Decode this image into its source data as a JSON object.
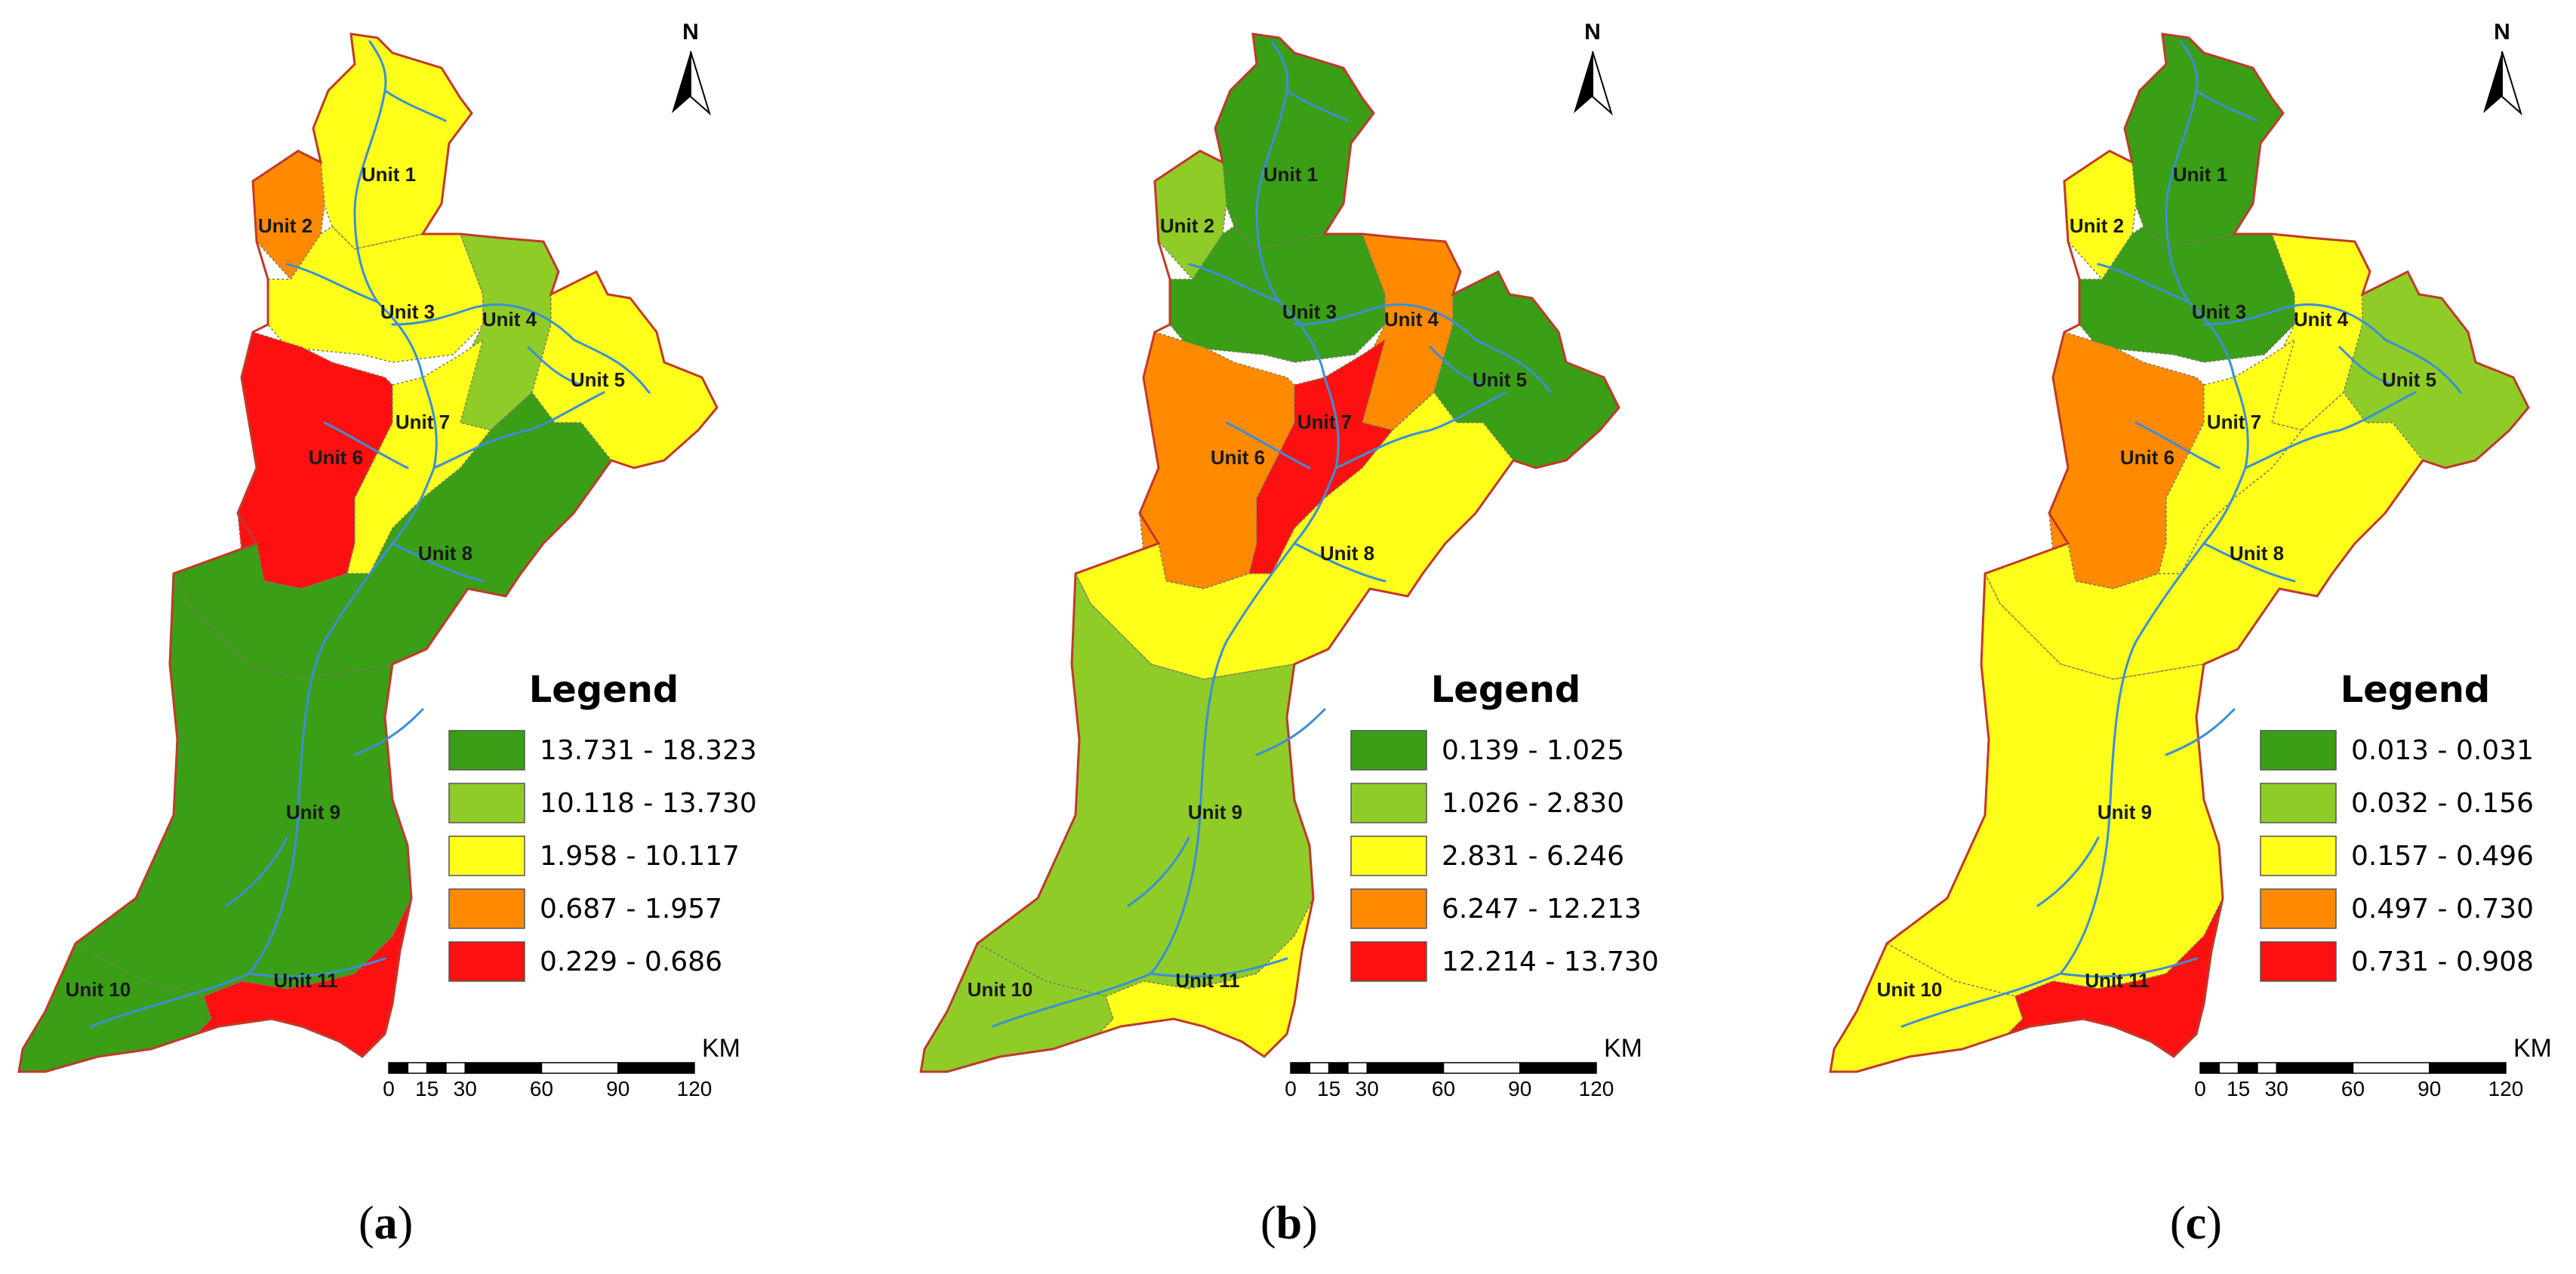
{
  "panels": [
    {
      "caption": "a",
      "north_label": "N",
      "legend_title": "Legend",
      "legend": [
        {
          "range": "13.731 - 18.323",
          "color": "#3a9e16"
        },
        {
          "range": "10.118 - 13.730",
          "color": "#8fcc27"
        },
        {
          "range": "1.958 - 10.117",
          "color": "#ffff1a"
        },
        {
          "range": "0.687 - 1.957",
          "color": "#ff8a00"
        },
        {
          "range": "0.229 - 0.686",
          "color": "#ff1010"
        }
      ],
      "unit_colors": {
        "1": "#ffff1a",
        "2": "#ff8a00",
        "3": "#ffff1a",
        "4": "#8fcc27",
        "5": "#ffff1a",
        "6": "#ff1010",
        "7": "#ffff1a",
        "8": "#3a9e16",
        "9": "#3a9e16",
        "10": "#3a9e16",
        "11": "#ff1010"
      }
    },
    {
      "caption": "b",
      "north_label": "N",
      "legend_title": "Legend",
      "legend": [
        {
          "range": "0.139 - 1.025",
          "color": "#3a9e16"
        },
        {
          "range": "1.026 - 2.830",
          "color": "#8fcc27"
        },
        {
          "range": "2.831 - 6.246",
          "color": "#ffff1a"
        },
        {
          "range": "6.247 - 12.213",
          "color": "#ff8a00"
        },
        {
          "range": "12.214 - 13.730",
          "color": "#ff1010"
        }
      ],
      "unit_colors": {
        "1": "#3a9e16",
        "2": "#8fcc27",
        "3": "#3a9e16",
        "4": "#ff8a00",
        "5": "#3a9e16",
        "6": "#ff8a00",
        "7": "#ff1010",
        "8": "#ffff1a",
        "9": "#8fcc27",
        "10": "#8fcc27",
        "11": "#ffff1a"
      }
    },
    {
      "caption": "c",
      "north_label": "N",
      "legend_title": "Legend",
      "legend": [
        {
          "range": "0.013 - 0.031",
          "color": "#3a9e16"
        },
        {
          "range": "0.032 - 0.156",
          "color": "#8fcc27"
        },
        {
          "range": "0.157 - 0.496",
          "color": "#ffff1a"
        },
        {
          "range": "0.497 - 0.730",
          "color": "#ff8a00"
        },
        {
          "range": "0.731 - 0.908",
          "color": "#ff1010"
        }
      ],
      "unit_colors": {
        "1": "#3a9e16",
        "2": "#ffff1a",
        "3": "#3a9e16",
        "4": "#ffff1a",
        "5": "#8fcc27",
        "6": "#ff8a00",
        "7": "#ffff1a",
        "8": "#ffff1a",
        "9": "#ffff1a",
        "10": "#ffff1a",
        "11": "#ff1010"
      }
    }
  ],
  "unit_labels": [
    "Unit 1",
    "Unit 2",
    "Unit 3",
    "Unit 4",
    "Unit 5",
    "Unit 6",
    "Unit 7",
    "Unit 8",
    "Unit 9",
    "Unit 10",
    "Unit 11"
  ],
  "scale_bar": {
    "ticks": [
      "0",
      "15",
      "30",
      "60",
      "90",
      "120"
    ],
    "unit": "KM"
  },
  "colors": {
    "boundary": "#c0392b",
    "river": "#3b8fd8"
  }
}
